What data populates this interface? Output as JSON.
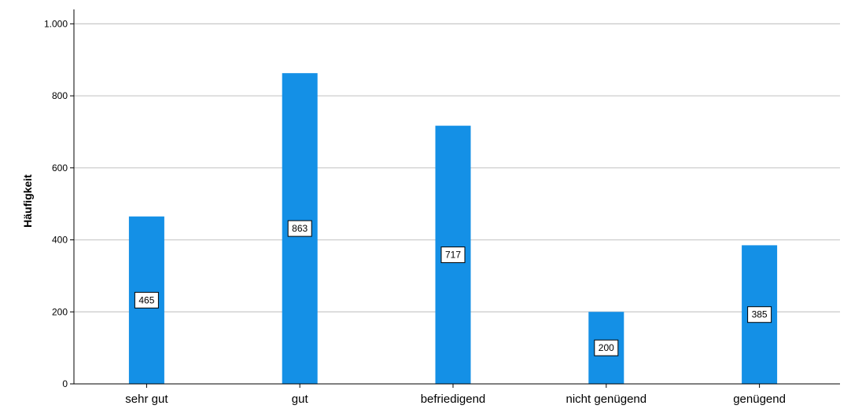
{
  "chart_data": {
    "type": "bar",
    "title": "",
    "xlabel": "",
    "ylabel": "Häufigkeit",
    "categories": [
      "sehr gut",
      "gut",
      "befriedigend",
      "nicht genügend",
      "genügend"
    ],
    "values": [
      465,
      863,
      717,
      200,
      385
    ],
    "data_labels": [
      "465",
      "863",
      "717",
      "200",
      "385"
    ],
    "ylim": [
      0,
      1040
    ],
    "yticks": [
      0,
      200,
      400,
      600,
      800,
      1000
    ],
    "ytick_labels": [
      "0",
      "200",
      "400",
      "600",
      "800",
      "1.000"
    ],
    "grid": true,
    "bar_color": "#1490e6"
  }
}
